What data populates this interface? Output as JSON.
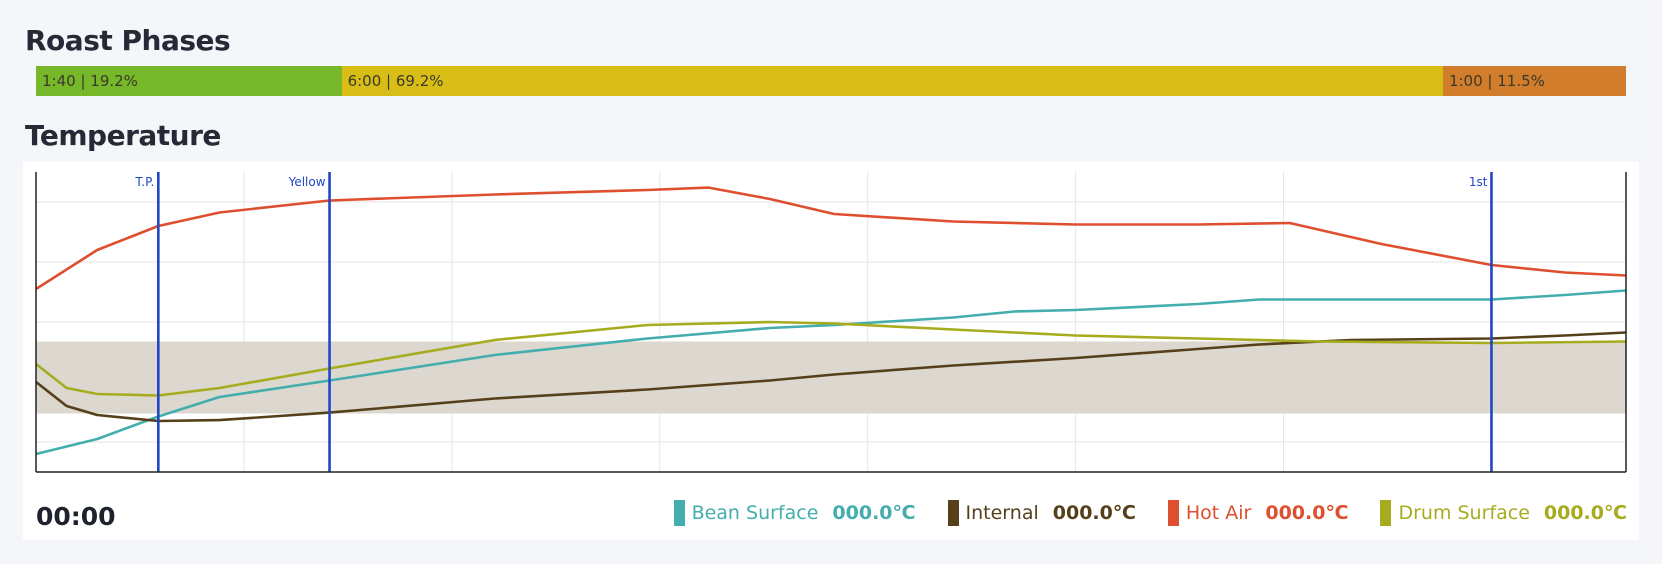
{
  "sections": {
    "phases_title": "Roast Phases",
    "temperature_title": "Temperature"
  },
  "phases": [
    {
      "label": "1:40 | 19.2%",
      "fraction": 0.192,
      "color": "#76b82a"
    },
    {
      "label": "6:00 | 69.2%",
      "fraction": 0.692,
      "color": "#d9bd17"
    },
    {
      "label": "1:00 | 11.5%",
      "fraction": 0.115,
      "color": "#d27d2b"
    }
  ],
  "footer": {
    "clock": "00:00"
  },
  "legend": [
    {
      "label": "Bean Surface",
      "value": "000.0℃",
      "color": "#44adad"
    },
    {
      "label": "Internal",
      "value": "000.0℃",
      "color": "#55401a"
    },
    {
      "label": "Hot Air",
      "value": "000.0℃",
      "color": "#de4f2f"
    },
    {
      "label": "Drum Surface",
      "value": "000.0℃",
      "color": "#a6ac1e"
    }
  ],
  "chart_data": {
    "type": "line",
    "xlim": [
      0,
      520
    ],
    "ylim": [
      0,
      100
    ],
    "grid": true,
    "band": {
      "y_from": 19.5,
      "y_to": 43.5,
      "color": "#dcd8d0"
    },
    "markers": [
      {
        "label": "T.P.",
        "x": 40,
        "color": "#1f46c6"
      },
      {
        "label": "Yellow",
        "x": 96,
        "color": "#1f46c6"
      },
      {
        "label": "1st",
        "x": 476,
        "color": "#1f46c6"
      }
    ],
    "series": [
      {
        "name": "Bean Surface",
        "color": "#44adad",
        "points": [
          [
            0,
            6
          ],
          [
            20,
            11
          ],
          [
            40,
            18.5
          ],
          [
            60,
            25
          ],
          [
            96,
            30.5
          ],
          [
            150,
            39
          ],
          [
            200,
            44.5
          ],
          [
            240,
            48
          ],
          [
            261,
            49
          ],
          [
            300,
            51.5
          ],
          [
            320,
            53.5
          ],
          [
            340,
            54
          ],
          [
            380,
            56
          ],
          [
            400,
            57.5
          ],
          [
            420,
            57.5
          ],
          [
            440,
            57.5
          ],
          [
            476,
            57.5
          ],
          [
            500,
            59
          ],
          [
            520,
            60.5
          ]
        ]
      },
      {
        "name": "Internal",
        "color": "#55401a",
        "points": [
          [
            0,
            30
          ],
          [
            10,
            22
          ],
          [
            20,
            19
          ],
          [
            40,
            17
          ],
          [
            60,
            17.3
          ],
          [
            96,
            19.8
          ],
          [
            150,
            24.5
          ],
          [
            200,
            27.5
          ],
          [
            240,
            30.5
          ],
          [
            261,
            32.5
          ],
          [
            300,
            35.5
          ],
          [
            340,
            38
          ],
          [
            380,
            41
          ],
          [
            400,
            42.5
          ],
          [
            430,
            44
          ],
          [
            476,
            44.5
          ],
          [
            500,
            45.5
          ],
          [
            520,
            46.5
          ]
        ]
      },
      {
        "name": "Hot Air",
        "color": "#de4f2f",
        "points": [
          [
            0,
            61
          ],
          [
            20,
            74
          ],
          [
            40,
            82
          ],
          [
            60,
            86.5
          ],
          [
            96,
            90.5
          ],
          [
            150,
            92.5
          ],
          [
            200,
            94
          ],
          [
            220,
            94.8
          ],
          [
            240,
            91
          ],
          [
            261,
            86
          ],
          [
            300,
            83.5
          ],
          [
            340,
            82.5
          ],
          [
            380,
            82.5
          ],
          [
            410,
            83
          ],
          [
            440,
            76
          ],
          [
            476,
            69
          ],
          [
            500,
            66.5
          ],
          [
            520,
            65.5
          ]
        ]
      },
      {
        "name": "Drum Surface",
        "color": "#a6ac1e",
        "points": [
          [
            0,
            36
          ],
          [
            10,
            28
          ],
          [
            20,
            26
          ],
          [
            40,
            25.5
          ],
          [
            60,
            28
          ],
          [
            96,
            34.5
          ],
          [
            150,
            44
          ],
          [
            200,
            49
          ],
          [
            240,
            50
          ],
          [
            261,
            49.5
          ],
          [
            300,
            47.5
          ],
          [
            340,
            45.5
          ],
          [
            380,
            44.5
          ],
          [
            420,
            43.5
          ],
          [
            476,
            43
          ],
          [
            520,
            43.5
          ]
        ]
      }
    ]
  }
}
